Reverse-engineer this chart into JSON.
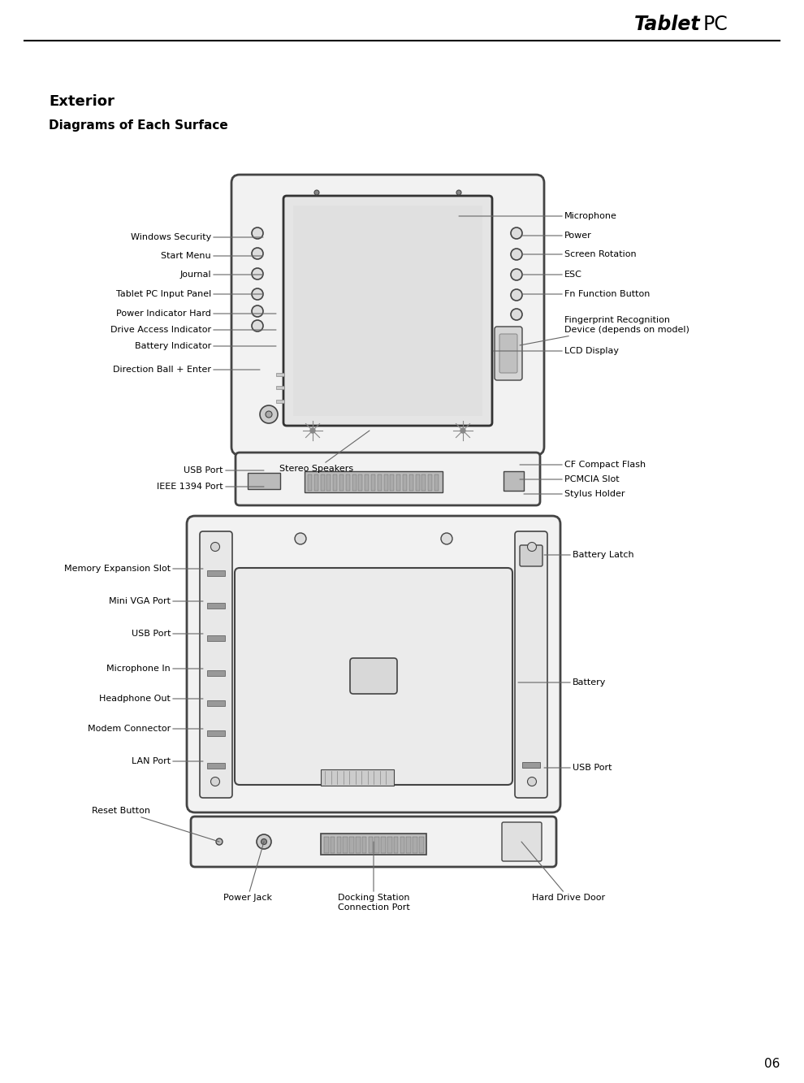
{
  "bg_color": "#ffffff",
  "text_color": "#000000",
  "line_color": "#666666",
  "device_edge": "#444444",
  "device_fill": "#f2f2f2",
  "device_dark": "#888888",
  "port_fill": "#bbbbbb",
  "screen_fill": "#e5e5e5",
  "title_bold": "Tablet",
  "title_normal": "PC",
  "section_title": "Exterior",
  "section_subtitle": "Diagrams of Each Surface",
  "page_number": "06",
  "label_fontsize": 8.0,
  "title_fontsize": 17,
  "section_title_fontsize": 13,
  "section_subtitle_fontsize": 11
}
